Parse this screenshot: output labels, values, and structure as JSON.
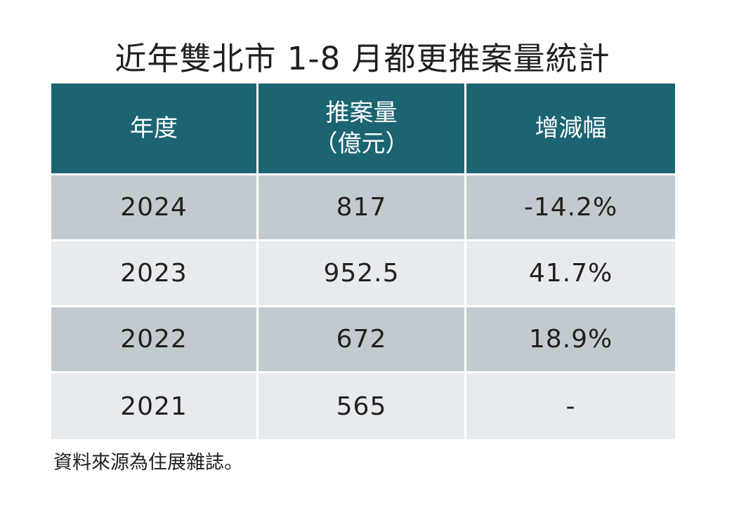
{
  "title": "近年雙北市 1-8 月都更推案量統計",
  "table": {
    "headers": [
      {
        "line1": "年度",
        "line2": ""
      },
      {
        "line1": "推案量",
        "line2": "（億元）"
      },
      {
        "line1": "增減幅",
        "line2": ""
      }
    ],
    "rows": [
      {
        "year": "2024",
        "amount": "817",
        "change": "-14.2%"
      },
      {
        "year": "2023",
        "amount": "952.5",
        "change": "41.7%"
      },
      {
        "year": "2022",
        "amount": "672",
        "change": "18.9%"
      },
      {
        "year": "2021",
        "amount": "565",
        "change": "-"
      }
    ]
  },
  "source_note": "資料來源為住展雜誌。",
  "colors": {
    "header_bg": "#1d6473",
    "row_dark": "#c1cacf",
    "row_light": "#e8ebed"
  }
}
